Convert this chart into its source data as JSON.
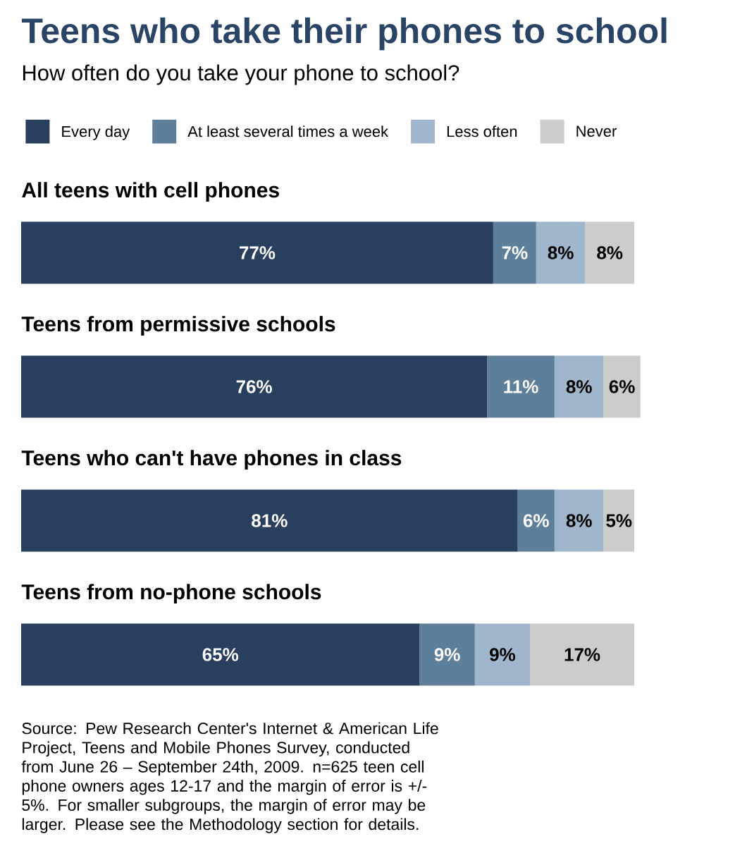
{
  "chart_data": {
    "type": "bar",
    "orientation": "horizontal",
    "stacked": true,
    "title": "Teens who take their phones to school",
    "subtitle": "How often do you take your phone to school?",
    "categories": [
      "All teens with cell phones",
      "Teens from permissive schools",
      "Teens who can't have phones in class",
      "Teens from no-phone schools"
    ],
    "series": [
      {
        "name": "Every day",
        "color": "#283f5e",
        "values": [
          77,
          76,
          81,
          65
        ],
        "value_labels": [
          "77%",
          "76%",
          "81%",
          "65%"
        ]
      },
      {
        "name": "At least several times a week",
        "color": "#5e7f99",
        "values": [
          7,
          11,
          6,
          9
        ],
        "value_labels": [
          "7%",
          "11%",
          "6%",
          "9%"
        ]
      },
      {
        "name": "Less often",
        "color": "#a0b6cd",
        "values": [
          8,
          8,
          8,
          9
        ],
        "value_labels": [
          "8%",
          "8%",
          "8%",
          "9%"
        ]
      },
      {
        "name": "Never",
        "color": "#cccccc",
        "values": [
          8,
          6,
          5,
          17
        ],
        "value_labels": [
          "8%",
          "6%",
          "5%",
          "17%"
        ]
      }
    ],
    "legend": "top",
    "annotations": [
      "Source: Pew Research Center's Internet & American Life Project, Teens and Mobile Phones Survey, conducted from June 26 – September 24th, 2009. n=625 teen cell phone owners ages 12-17 and the margin of error is +/- 5%. For smaller subgroups, the margin of error may be larger. Please see the Methodology section for details."
    ]
  }
}
